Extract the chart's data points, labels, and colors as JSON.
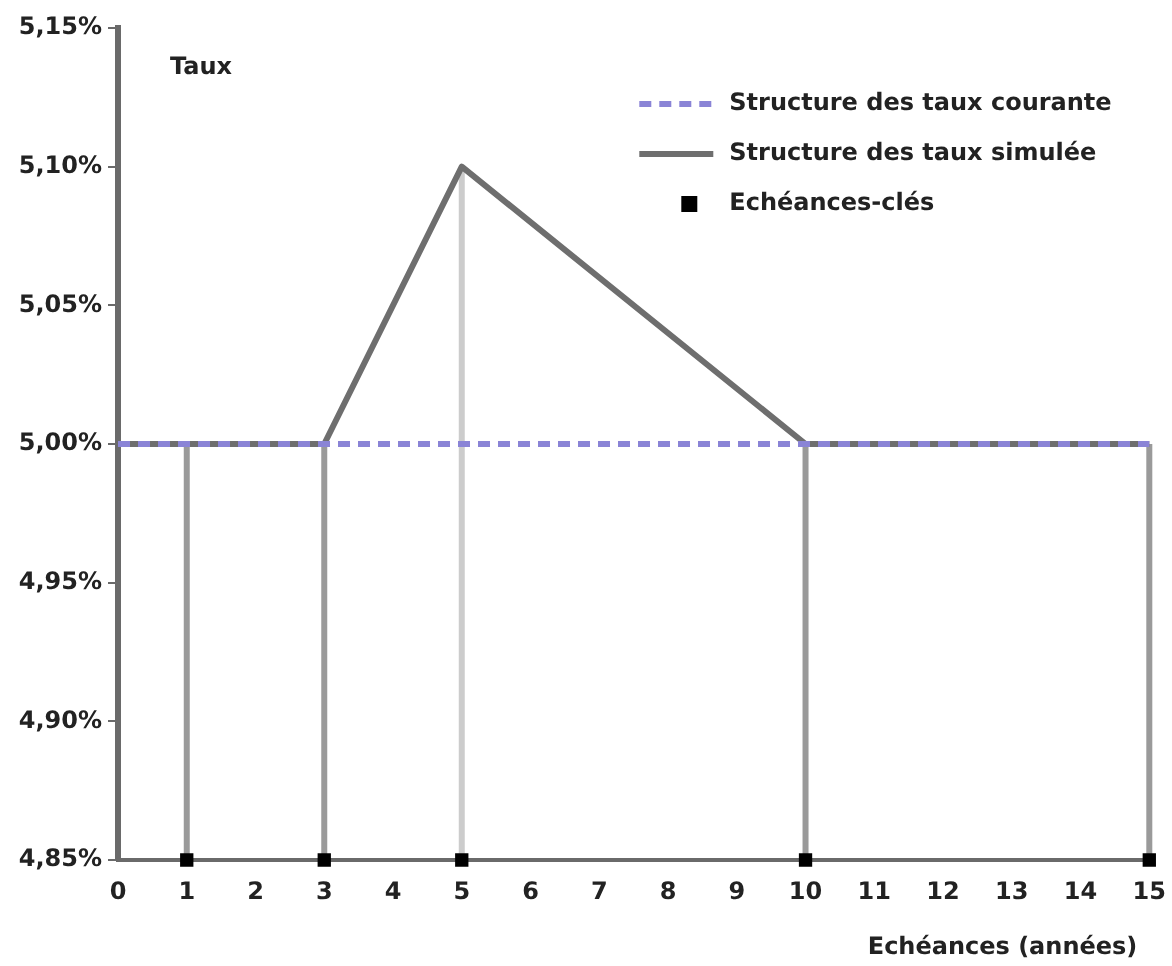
{
  "chart_data": {
    "type": "line",
    "ylabel": "Taux",
    "xlabel": "Echéances (années)",
    "xlim": [
      0,
      15
    ],
    "xticks": [
      0,
      1,
      2,
      3,
      4,
      5,
      6,
      7,
      8,
      9,
      10,
      11,
      12,
      13,
      14,
      15
    ],
    "ylim": [
      4.85,
      5.15
    ],
    "yticks": [
      {
        "value": 4.85,
        "label": "4,85%"
      },
      {
        "value": 4.9,
        "label": "4,90%"
      },
      {
        "value": 4.95,
        "label": "4,95%"
      },
      {
        "value": 5.0,
        "label": "5,00%"
      },
      {
        "value": 5.05,
        "label": "5,05%"
      },
      {
        "value": 5.1,
        "label": "5,10%"
      },
      {
        "value": 5.15,
        "label": "5,15%"
      }
    ],
    "grid": false,
    "legend": "top right",
    "series": [
      {
        "name": "Structure des taux courante",
        "line_style": "dashed",
        "color": "#8a84d6",
        "x": [
          0,
          15
        ],
        "values": [
          5.0,
          5.0
        ]
      },
      {
        "name": "Structure des taux simulée",
        "line_style": "solid",
        "color": "#6e6e6e",
        "x": [
          0,
          3,
          5,
          10,
          15
        ],
        "values": [
          5.0,
          5.0,
          5.1,
          5.0,
          5.0
        ]
      },
      {
        "name": "Echéances-clés",
        "type": "scatter",
        "marker": "square",
        "color": "#000000",
        "x": [
          1,
          3,
          5,
          10,
          15
        ],
        "values": [
          4.85,
          4.85,
          4.85,
          4.85,
          4.85
        ]
      }
    ],
    "ref_lines": [
      {
        "axis": "x",
        "value": 1,
        "color": "#9a9a9a"
      },
      {
        "axis": "x",
        "value": 3,
        "color": "#9a9a9a"
      },
      {
        "axis": "x",
        "value": 5,
        "color": "#cccccc"
      },
      {
        "axis": "x",
        "value": 10,
        "color": "#9a9a9a"
      },
      {
        "axis": "x",
        "value": 15,
        "color": "#9a9a9a"
      }
    ]
  }
}
